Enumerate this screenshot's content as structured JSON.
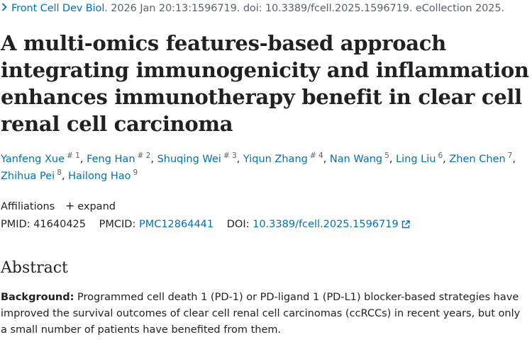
{
  "citation": {
    "journal": "Front Cell Dev Biol.",
    "rest": "2026 Jan 20:13:1596719. doi: 10.3389/fcell.2025.1596719. eCollection 2025."
  },
  "title": "A multi-omics features-based approach integrating immunogenicity and inflammation enhances immunotherapy benefit in clear cell renal cell carcinoma",
  "authors": [
    {
      "name": "Yanfeng Xue",
      "sup": "# 1"
    },
    {
      "name": "Feng Han",
      "sup": "# 2"
    },
    {
      "name": "Shuqing Wei",
      "sup": "# 3"
    },
    {
      "name": "Yiqun Zhang",
      "sup": "# 4"
    },
    {
      "name": "Nan Wang",
      "sup": "5"
    },
    {
      "name": "Ling Liu",
      "sup": "6"
    },
    {
      "name": "Zhen Chen",
      "sup": "7"
    },
    {
      "name": "Zhihua Pei",
      "sup": "8"
    },
    {
      "name": "Hailong Hao",
      "sup": "9"
    }
  ],
  "affiliations": {
    "label": "Affiliations",
    "expand": "expand"
  },
  "ids": {
    "pmid_label": "PMID:",
    "pmid": "41640425",
    "pmcid_label": "PMCID:",
    "pmcid": "PMC12864441",
    "doi_label": "DOI:",
    "doi": "10.3389/fcell.2025.1596719"
  },
  "abstract": {
    "heading": "Abstract",
    "background_label": "Background:",
    "background_text": "Programmed cell death 1 (PD-1) or PD-ligand 1 (PD-L1) blocker-based strategies have improved the survival outcomes of clear cell renal cell carcinomas (ccRCCs) in recent years, but only a small number of patients have benefited from them."
  },
  "icons": [
    "chevron-right-icon",
    "plus-icon",
    "external-link-icon"
  ],
  "colors": {
    "link": "#0071bc",
    "text": "#212121",
    "muted": "#5b616b"
  }
}
